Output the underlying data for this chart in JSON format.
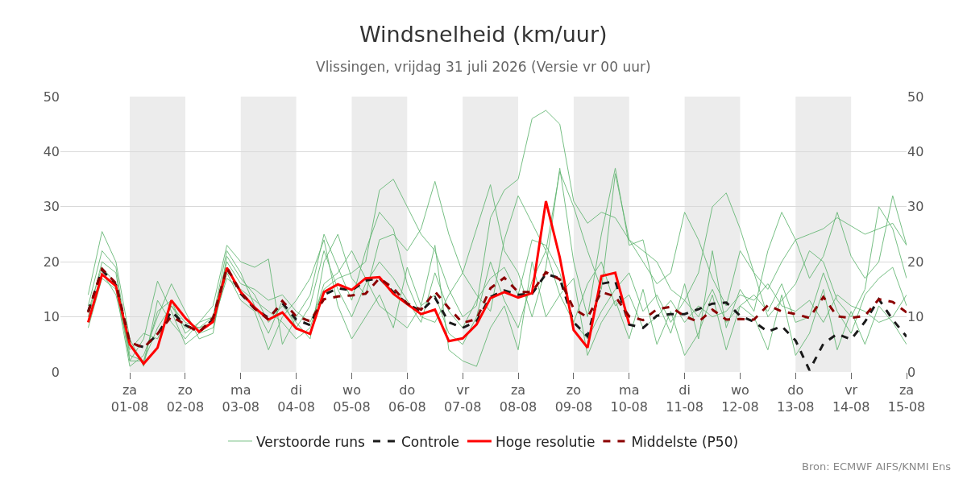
{
  "chart_data": {
    "type": "line",
    "title": "Windsnelheid (km/uur)",
    "subtitle": "Vlissingen, vrijdag 31 juli 2026 (Versie vr 00 uur)",
    "x": [
      "2026-07-31T06:00",
      "2026-07-31T12:00",
      "2026-07-31T18:00",
      "2026-08-01T00:00",
      "2026-08-01T06:00",
      "2026-08-01T12:00",
      "2026-08-01T18:00",
      "2026-08-02T00:00",
      "2026-08-02T06:00",
      "2026-08-02T12:00",
      "2026-08-02T18:00",
      "2026-08-03T00:00",
      "2026-08-03T06:00",
      "2026-08-03T12:00",
      "2026-08-03T18:00",
      "2026-08-04T00:00",
      "2026-08-04T06:00",
      "2026-08-04T12:00",
      "2026-08-04T18:00",
      "2026-08-05T00:00",
      "2026-08-05T06:00",
      "2026-08-05T12:00",
      "2026-08-05T18:00",
      "2026-08-06T00:00",
      "2026-08-06T06:00",
      "2026-08-06T12:00",
      "2026-08-06T18:00",
      "2026-08-07T00:00",
      "2026-08-07T06:00",
      "2026-08-07T12:00",
      "2026-08-07T18:00",
      "2026-08-08T00:00",
      "2026-08-08T06:00",
      "2026-08-08T12:00",
      "2026-08-08T18:00",
      "2026-08-09T00:00",
      "2026-08-09T06:00",
      "2026-08-09T12:00",
      "2026-08-09T18:00",
      "2026-08-10T00:00",
      "2026-08-10T06:00",
      "2026-08-10T12:00",
      "2026-08-10T18:00",
      "2026-08-11T00:00",
      "2026-08-11T06:00",
      "2026-08-11T12:00",
      "2026-08-11T18:00",
      "2026-08-12T00:00",
      "2026-08-12T06:00",
      "2026-08-12T12:00",
      "2026-08-12T18:00",
      "2026-08-13T00:00",
      "2026-08-13T06:00",
      "2026-08-13T12:00",
      "2026-08-13T18:00",
      "2026-08-14T00:00",
      "2026-08-14T06:00",
      "2026-08-14T12:00",
      "2026-08-14T18:00",
      "2026-08-15T00:00"
    ],
    "series": [
      {
        "name": "Verstoorde runs",
        "color": "#5fb46f",
        "values": [
          12,
          22,
          19,
          3,
          2,
          8,
          12,
          9,
          8,
          10,
          20,
          16,
          15,
          13,
          14,
          11,
          9,
          15,
          17,
          18,
          20,
          33,
          35,
          30,
          25,
          22,
          15,
          10,
          12,
          28,
          33,
          35,
          46,
          47.5,
          45,
          31,
          27,
          29,
          28,
          24,
          22,
          20,
          15,
          13,
          18,
          30,
          32.5,
          26,
          18,
          15,
          20,
          24,
          25,
          26,
          28,
          26.5,
          25,
          26,
          27,
          23
        ]
      },
      {
        "color": "#5fb46f",
        "values": [
          8,
          17,
          15,
          1,
          3,
          10,
          16,
          11,
          6,
          7,
          21,
          17,
          14,
          9,
          12,
          9,
          6,
          20,
          25,
          17,
          14,
          24,
          25,
          22,
          26,
          34.6,
          25,
          18,
          14,
          11,
          24,
          32,
          27,
          22,
          36.4,
          30,
          22,
          15,
          36,
          24,
          20,
          16,
          18,
          29,
          24,
          17,
          12,
          22,
          18,
          10,
          13,
          16,
          22,
          20,
          13,
          10,
          15,
          30,
          26,
          17
        ]
      },
      {
        "color": "#5fb46f",
        "values": [
          14,
          25.5,
          20,
          6,
          1,
          13,
          9,
          6,
          9,
          12,
          23,
          20,
          19,
          20.5,
          5,
          10,
          14,
          25,
          19,
          13,
          22,
          29,
          26,
          16,
          10,
          9,
          14,
          18,
          26,
          34,
          22,
          18,
          10,
          19,
          37,
          20,
          10,
          25,
          37,
          23,
          24,
          13,
          7,
          16,
          6,
          22,
          8,
          15,
          11,
          22,
          29,
          24,
          17,
          21,
          29,
          21,
          17,
          20,
          32,
          23
        ]
      },
      {
        "color": "#5fb46f",
        "values": [
          10,
          20,
          18,
          2,
          6,
          16.5,
          11,
          5,
          7,
          8,
          18,
          13,
          11,
          4,
          10,
          13,
          17,
          24,
          12,
          6,
          10,
          14,
          8,
          19,
          12,
          23,
          4,
          2,
          1,
          8,
          12,
          4,
          20,
          10,
          14,
          17,
          3,
          9,
          13,
          6,
          15,
          5,
          11,
          3,
          7,
          14,
          4,
          12,
          10,
          4,
          14,
          3,
          7,
          15,
          4,
          11,
          5,
          12,
          9,
          5
        ]
      },
      {
        "color": "#5fb46f",
        "values": [
          9,
          18,
          14,
          4,
          7,
          6,
          12,
          8,
          8,
          9,
          17,
          15,
          13,
          11,
          9,
          6,
          8,
          16,
          18,
          22,
          17,
          12,
          10,
          8,
          12,
          14,
          7,
          5,
          10,
          20,
          13,
          8,
          16.5,
          22,
          14,
          9,
          16,
          20,
          12,
          14,
          8,
          10,
          13,
          9,
          12,
          10,
          11,
          14,
          13,
          16,
          12,
          11,
          13,
          9,
          14,
          12,
          11,
          9,
          10,
          14
        ]
      },
      {
        "color": "#5fb46f",
        "values": [
          11,
          19,
          16,
          2,
          2,
          11,
          13,
          7,
          9,
          10,
          22,
          18,
          12,
          7,
          13,
          8,
          12,
          22,
          15,
          10,
          16,
          20,
          17,
          13,
          9,
          18,
          11,
          8,
          13,
          17,
          19,
          14,
          24,
          23,
          18,
          9,
          6,
          11,
          15,
          18,
          11,
          14,
          9,
          13,
          10,
          15,
          9,
          12,
          14,
          11,
          16,
          9,
          10,
          18,
          11,
          7,
          14,
          17,
          19,
          12
        ]
      },
      {
        "name": "Controle",
        "color": "#1a1a1a",
        "line_style": "dashed",
        "values": [
          11,
          18.5,
          15.8,
          5.2,
          4.5,
          6.8,
          11,
          8.5,
          7.3,
          9.5,
          18.8,
          14.2,
          11.5,
          9.8,
          12.5,
          9.5,
          8.5,
          14,
          15.2,
          14.8,
          16.6,
          17,
          14.5,
          12.4,
          11,
          13.5,
          9,
          8,
          9.2,
          13.6,
          14.8,
          14,
          14.2,
          17.8,
          17,
          9,
          6.5,
          16,
          16.5,
          8.6,
          8.0,
          10.2,
          10.5,
          10.5,
          11.4,
          12.4,
          12.6,
          10.2,
          9.1,
          7.3,
          8.3,
          5.7,
          0.3,
          5.1,
          6.9,
          5.9,
          9.1,
          13.2,
          9.5,
          6.4
        ]
      },
      {
        "name": "Hoge resolutie",
        "color": "#ff0000",
        "line_style": "solid",
        "values": [
          9,
          17.7,
          15.6,
          5.0,
          1.5,
          4.4,
          13.0,
          9.8,
          7.3,
          9.1,
          18.9,
          14.5,
          11.7,
          9.5,
          10.8,
          7.9,
          6.9,
          14.5,
          15.9,
          14.9,
          17.0,
          17.2,
          14.2,
          12.3,
          10.5,
          11.3,
          5.6,
          6.1,
          8.6,
          13.4,
          14.5,
          13.5,
          14.3,
          31.0,
          20.8,
          7.6,
          4.4,
          17.4,
          18.0,
          8.7,
          null,
          null,
          null,
          null,
          null,
          null,
          null,
          null,
          null,
          null,
          null,
          null,
          null,
          null,
          null,
          null,
          null,
          null,
          null,
          null
        ]
      },
      {
        "name": "Middelste (P50)",
        "color": "#8b0000",
        "line_style": "dashed",
        "values": [
          10.8,
          18.7,
          16.1,
          5.4,
          4.4,
          6.9,
          10.1,
          8.6,
          7.2,
          9.8,
          19.0,
          14.5,
          11.5,
          9.5,
          12.9,
          10.1,
          9.2,
          13.2,
          13.7,
          13.9,
          14.2,
          17.0,
          15.2,
          12.4,
          11.3,
          14.6,
          11.6,
          8.9,
          9.6,
          15.2,
          17.1,
          14.5,
          14.5,
          18.1,
          16.8,
          11.5,
          9.9,
          14.5,
          13.7,
          10.1,
          9.4,
          11.4,
          11.8,
          10.1,
          9.1,
          11.3,
          9.5,
          9.6,
          9.5,
          12.1,
          11.0,
          10.5,
          9.8,
          13.6,
          10.1,
          9.8,
          10.2,
          13.2,
          12.7,
          10.8
        ]
      }
    ],
    "xlim": [
      "2026-07-30T18:00",
      "2026-08-15T00:00"
    ],
    "xticks": [
      {
        "value": "2026-08-01",
        "label": "za\n01-08"
      },
      {
        "value": "2026-08-02",
        "label": "zo\n02-08"
      },
      {
        "value": "2026-08-03",
        "label": "ma\n03-08"
      },
      {
        "value": "2026-08-04",
        "label": "di\n04-08"
      },
      {
        "value": "2026-08-05",
        "label": "wo\n05-08"
      },
      {
        "value": "2026-08-06",
        "label": "do\n06-08"
      },
      {
        "value": "2026-08-07",
        "label": "vr\n07-08"
      },
      {
        "value": "2026-08-08",
        "label": "za\n08-08"
      },
      {
        "value": "2026-08-09",
        "label": "zo\n09-08"
      },
      {
        "value": "2026-08-10",
        "label": "ma\n10-08"
      },
      {
        "value": "2026-08-11",
        "label": "di\n11-08"
      },
      {
        "value": "2026-08-12",
        "label": "wo\n12-08"
      },
      {
        "value": "2026-08-13",
        "label": "do\n13-08"
      },
      {
        "value": "2026-08-14",
        "label": "vr\n14-08"
      },
      {
        "value": "2026-08-15",
        "label": "za\n15-08"
      }
    ],
    "ylim": [
      0,
      50
    ],
    "yticks": [
      0,
      10,
      20,
      30,
      40,
      50
    ],
    "y2lim": [
      0,
      50
    ],
    "y2ticks": [
      0,
      10,
      20,
      30,
      40,
      50
    ],
    "bands": [
      {
        "axis": "x",
        "from": "2026-08-01",
        "to": "2026-08-02",
        "color": "#ececec"
      },
      {
        "axis": "x",
        "from": "2026-08-03",
        "to": "2026-08-04",
        "color": "#ececec"
      },
      {
        "axis": "x",
        "from": "2026-08-05",
        "to": "2026-08-06",
        "color": "#ececec"
      },
      {
        "axis": "x",
        "from": "2026-08-07",
        "to": "2026-08-08",
        "color": "#ececec"
      },
      {
        "axis": "x",
        "from": "2026-08-09",
        "to": "2026-08-10",
        "color": "#ececec"
      },
      {
        "axis": "x",
        "from": "2026-08-11",
        "to": "2026-08-12",
        "color": "#ececec"
      },
      {
        "axis": "x",
        "from": "2026-08-13",
        "to": "2026-08-14",
        "color": "#ececec"
      }
    ],
    "grid": "y",
    "legend": "bottom",
    "annotations": [
      "Bron: ECMWF AIFS/KNMI Ens"
    ]
  }
}
